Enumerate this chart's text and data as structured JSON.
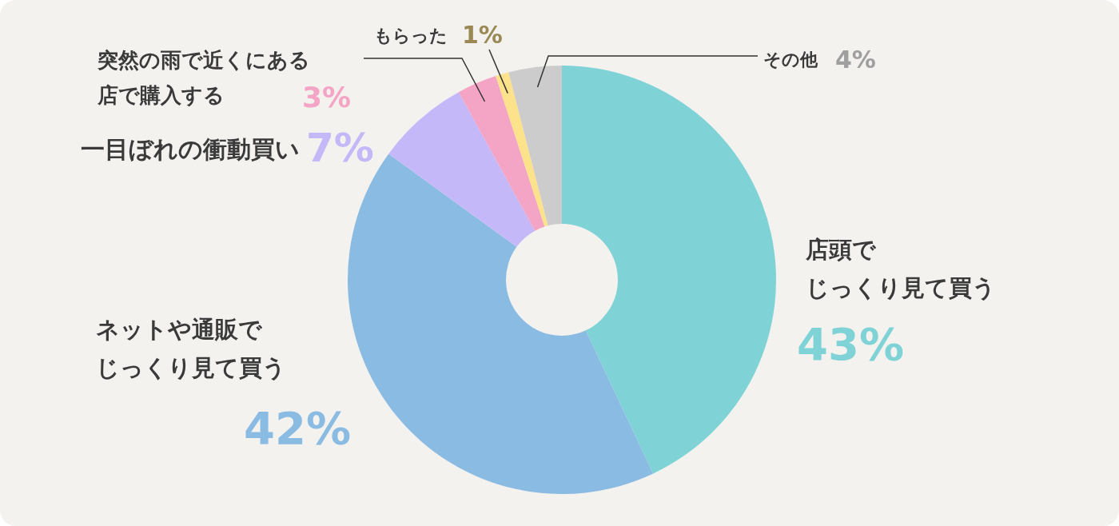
{
  "chart_data": {
    "type": "donut",
    "categories": [
      "店頭でじっくり見て買う",
      "ネットや通販でじっくり見て買う",
      "一目ぼれの衝動買い",
      "突然の雨で近くにある店で購入する",
      "もらった",
      "その他"
    ],
    "values": [
      43,
      42,
      7,
      3,
      1,
      4
    ],
    "colors": [
      "#7fd3d6",
      "#8abbe3",
      "#c5b8f8",
      "#f4a4c4",
      "#fde28c",
      "#cccccc"
    ],
    "value_labels": [
      "43%",
      "42%",
      "7%",
      "3%",
      "1%",
      "4%"
    ]
  }
}
